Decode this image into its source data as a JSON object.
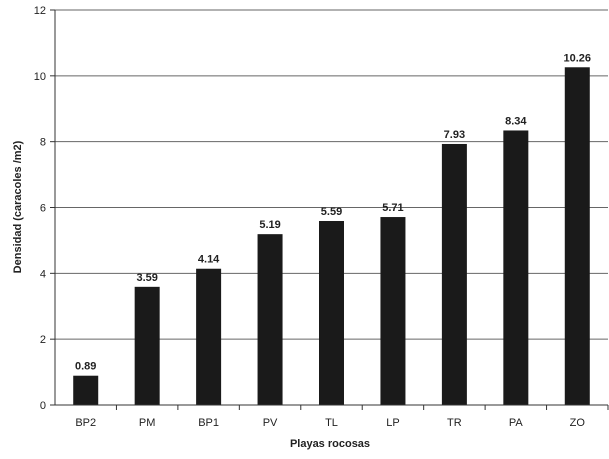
{
  "chart_data": {
    "type": "bar",
    "title": "",
    "xlabel": "Playas rocosas",
    "ylabel": "Densidad (caracoles /m2)",
    "categories": [
      "BP2",
      "PM",
      "BP1",
      "PV",
      "TL",
      "LP",
      "TR",
      "PA",
      "ZO"
    ],
    "values": [
      0.89,
      3.59,
      4.14,
      5.19,
      5.59,
      5.71,
      7.93,
      8.34,
      10.26
    ],
    "data_labels": [
      "0.89",
      "3.59",
      "4.14",
      "5.19",
      "5.59",
      "5.71",
      "7.93",
      "8.34",
      "10.26"
    ],
    "ylim": [
      0,
      12
    ],
    "yticks": [
      0,
      2,
      4,
      6,
      8,
      10,
      12
    ],
    "grid": true,
    "colors": {
      "bar": "#1a1a1a",
      "grid": "#666666",
      "axis": "#333333"
    }
  }
}
